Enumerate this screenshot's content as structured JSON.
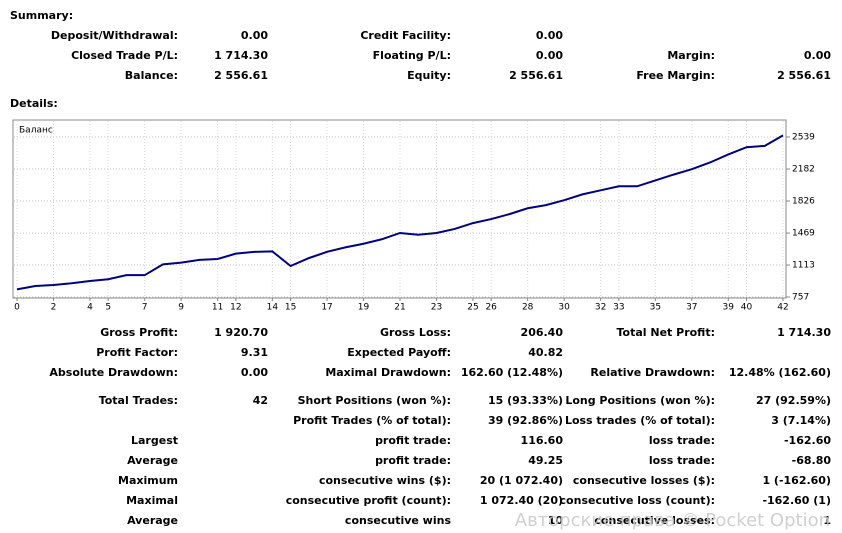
{
  "summary": {
    "title": "Summary:",
    "rows": [
      {
        "c1": "Deposit/Withdrawal:",
        "c2": "0.00",
        "c3": "Credit Facility:",
        "c4": "0.00"
      },
      {
        "c1": "Closed Trade P/L:",
        "c2": "1 714.30",
        "c3": "Floating P/L:",
        "c4": "0.00",
        "c5": "Margin:",
        "c6": "0.00"
      },
      {
        "c1": "Balance:",
        "c2": "2 556.61",
        "c3": "Equity:",
        "c4": "2 556.61",
        "c5": "Free Margin:",
        "c6": "2 556.61"
      }
    ]
  },
  "details": {
    "title": "Details:",
    "rows": [
      {
        "c1": "Gross Profit:",
        "c2": "1 920.70",
        "c3": "Gross Loss:",
        "c4": "206.40",
        "c5": "Total Net Profit:",
        "c6": "1 714.30"
      },
      {
        "c1": "Profit Factor:",
        "c2": "9.31",
        "c3": "Expected Payoff:",
        "c4": "40.82"
      },
      {
        "c1": "Absolute Drawdown:",
        "c2": "0.00",
        "c3": "Maximal Drawdown:",
        "c4": "162.60 (12.48%)",
        "c5": "Relative Drawdown:",
        "c6": "12.48% (162.60)"
      },
      {
        "c1": "Total Trades:",
        "c2": "42",
        "c3": "Short Positions (won %):",
        "c4": "15 (93.33%)",
        "c5": "Long Positions (won %):",
        "c6": "27 (92.59%)"
      },
      {
        "c3": "Profit Trades (% of total):",
        "c4": "39 (92.86%)",
        "c5": "Loss trades (% of total):",
        "c6": "3 (7.14%)"
      },
      {
        "c1": "Largest",
        "c3": "profit trade:",
        "c4": "116.60",
        "c5": "loss trade:",
        "c6": "-162.60"
      },
      {
        "c1": "Average",
        "c3": "profit trade:",
        "c4": "49.25",
        "c5": "loss trade:",
        "c6": "-68.80"
      },
      {
        "c1": "Maximum",
        "c3": "consecutive wins ($):",
        "c4": "20 (1 072.40)",
        "c5": "consecutive losses ($):",
        "c6": "1 (-162.60)"
      },
      {
        "c1": "Maximal",
        "c3": "consecutive profit (count):",
        "c4": "1 072.40 (20)",
        "c5": "consecutive loss (count):",
        "c6": "-162.60 (1)"
      },
      {
        "c1": "Average",
        "c3": "consecutive wins",
        "c4": "10",
        "c5": "consecutive losses:",
        "c6": "1"
      }
    ]
  },
  "watermark": "Авторские права © Pocket Option",
  "chart_data": {
    "type": "line",
    "title": "Баланс",
    "x": [
      0,
      1,
      2,
      3,
      4,
      5,
      6,
      7,
      8,
      9,
      10,
      11,
      12,
      13,
      14,
      15,
      16,
      17,
      18,
      19,
      20,
      21,
      22,
      23,
      24,
      25,
      26,
      27,
      28,
      29,
      30,
      31,
      32,
      33,
      34,
      35,
      36,
      37,
      38,
      39,
      40,
      41,
      42
    ],
    "series": [
      {
        "name": "Баланс",
        "color": "#000080",
        "values": [
          842.31,
          880,
          890,
          910,
          935,
          955,
          1000,
          1000,
          1120,
          1140,
          1170,
          1180,
          1240,
          1260,
          1265,
          1102.4,
          1190,
          1260,
          1310,
          1350,
          1400,
          1470,
          1450,
          1470,
          1515,
          1580,
          1625,
          1680,
          1745,
          1780,
          1835,
          1900,
          1945,
          1990,
          1990,
          2055,
          2120,
          2180,
          2255,
          2345,
          2425,
          2440,
          2556.61
        ]
      }
    ],
    "xlim": [
      0,
      42
    ],
    "xticks": [
      0,
      2,
      4,
      5,
      7,
      9,
      11,
      12,
      14,
      15,
      17,
      19,
      21,
      23,
      25,
      26,
      28,
      30,
      32,
      33,
      35,
      37,
      39,
      40,
      42
    ],
    "ylim": [
      757,
      2717
    ],
    "yticks": [
      757,
      1113,
      1469,
      1826,
      2182,
      2539
    ],
    "grid": true
  }
}
